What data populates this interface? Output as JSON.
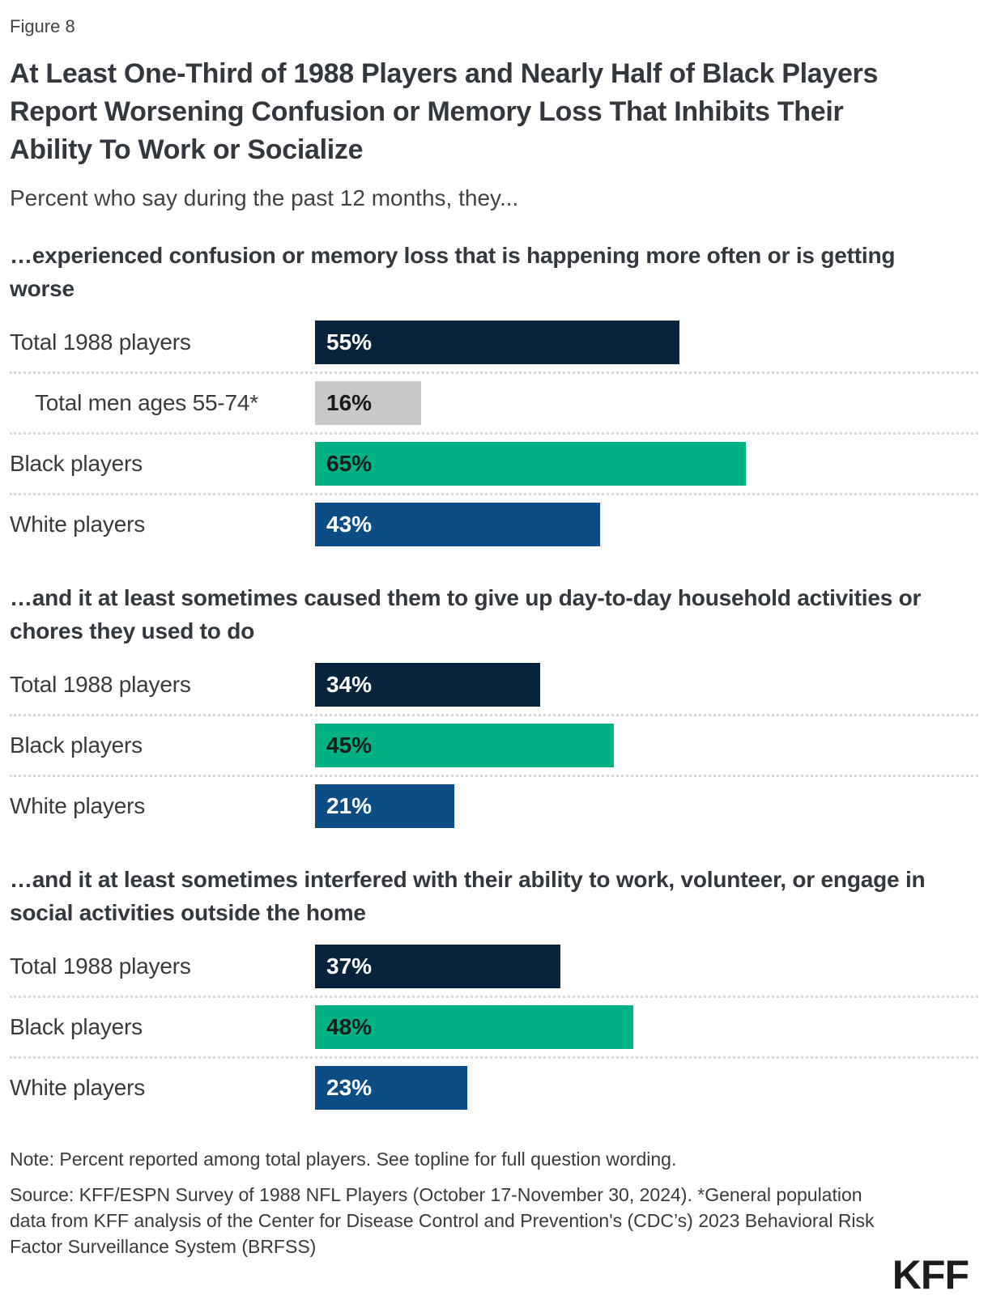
{
  "figure_label": "Figure 8",
  "title": "At Least One-Third of 1988 Players and Nearly Half of Black Players Report Worsening Confusion or Memory Loss That Inhibits Their Ability To Work or Socialize",
  "subtitle": "Percent who say during the past 12 months, they...",
  "note": "Note: Percent reported among total players. See topline for full question wording.",
  "source": "Source: KFF/ESPN Survey of 1988 NFL Players (October 17-November 30, 2024). *General population data from KFF analysis of the Center for Disease Control and Prevention's (CDC’s) 2023 Behavioral Risk Factor Surveillance System (BRFSS)",
  "logo_text": "KFF",
  "chart_data": {
    "type": "bar",
    "orientation": "horizontal",
    "value_unit": "%",
    "value_range": [
      0,
      100
    ],
    "grid": false,
    "legend": false,
    "series_colors": {
      "total_players": {
        "bar": "#08243c",
        "text": "#ffffff"
      },
      "general_population": {
        "bar": "#c8c8c8",
        "text": "#1a1a1a"
      },
      "black_players": {
        "bar": "#00b283",
        "text": "#1a1a1a"
      },
      "white_players": {
        "bar": "#0d4d85",
        "text": "#ffffff"
      }
    },
    "groups": [
      {
        "heading": "…experienced confusion or memory loss that is happening more often or is getting worse",
        "rows": [
          {
            "label": "Total 1988 players",
            "value": 55,
            "display": "55%",
            "series": "total_players",
            "indent": false
          },
          {
            "label": "Total men ages 55-74*",
            "value": 16,
            "display": "16%",
            "series": "general_population",
            "indent": true
          },
          {
            "label": "Black players",
            "value": 65,
            "display": "65%",
            "series": "black_players",
            "indent": false
          },
          {
            "label": "White players",
            "value": 43,
            "display": "43%",
            "series": "white_players",
            "indent": false
          }
        ]
      },
      {
        "heading": "…and it at least sometimes caused them to give up day-to-day household activities or chores they used to do",
        "rows": [
          {
            "label": "Total 1988 players",
            "value": 34,
            "display": "34%",
            "series": "total_players",
            "indent": false
          },
          {
            "label": "Black players",
            "value": 45,
            "display": "45%",
            "series": "black_players",
            "indent": false
          },
          {
            "label": "White players",
            "value": 21,
            "display": "21%",
            "series": "white_players",
            "indent": false
          }
        ]
      },
      {
        "heading": "…and it at least sometimes interfered with their ability to work, volunteer, or engage in social activities outside the home",
        "rows": [
          {
            "label": "Total 1988 players",
            "value": 37,
            "display": "37%",
            "series": "total_players",
            "indent": false
          },
          {
            "label": "Black players",
            "value": 48,
            "display": "48%",
            "series": "black_players",
            "indent": false
          },
          {
            "label": "White players",
            "value": 23,
            "display": "23%",
            "series": "white_players",
            "indent": false
          }
        ]
      }
    ]
  }
}
